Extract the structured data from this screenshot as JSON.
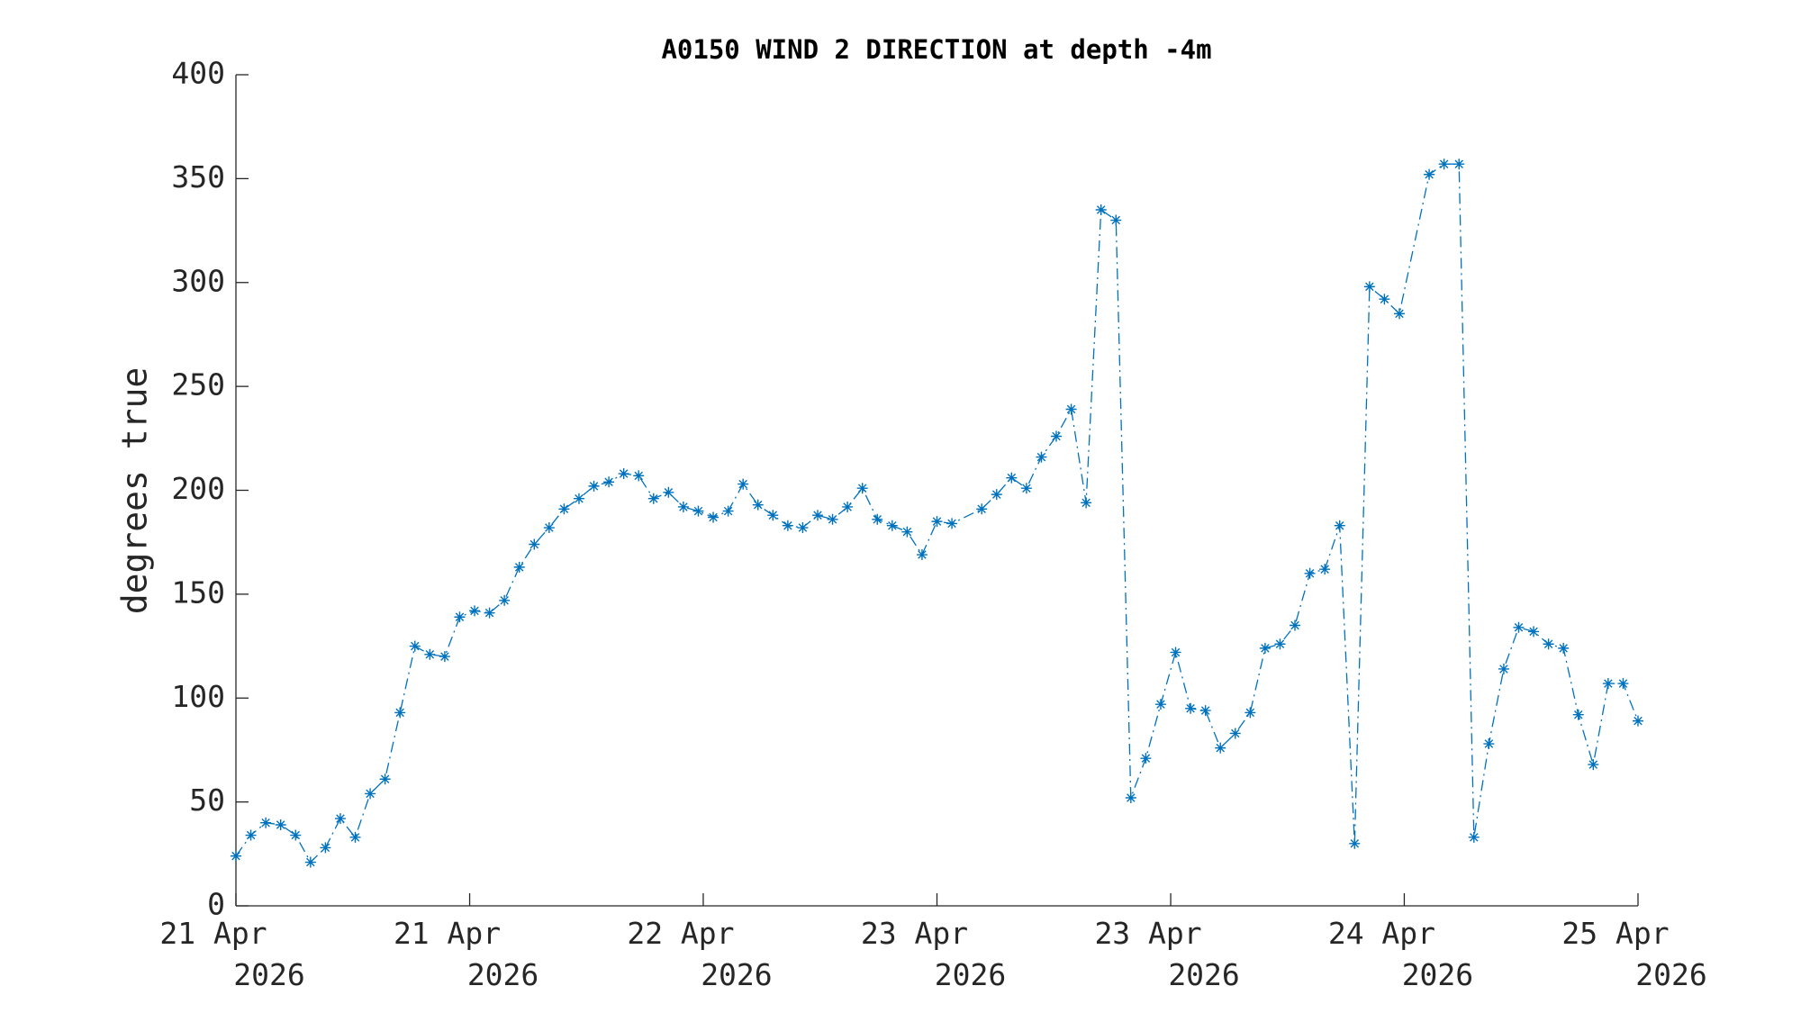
{
  "chart_data": {
    "type": "line",
    "title": "A0150 WIND 2 DIRECTION at depth -4m",
    "ylabel": "degrees true",
    "x": [
      0,
      1,
      2,
      3,
      4,
      5,
      6,
      7,
      8,
      9,
      10,
      11,
      12,
      13,
      14,
      15,
      16,
      17,
      18,
      19,
      20,
      21,
      22,
      23,
      24,
      25,
      26,
      27,
      28,
      29,
      30,
      31,
      32,
      33,
      34,
      35,
      36,
      37,
      38,
      39,
      40,
      41,
      42,
      43,
      44,
      45,
      46,
      47,
      48,
      50,
      51,
      52,
      53,
      54,
      55,
      56,
      57,
      58,
      59,
      60,
      61,
      62,
      63,
      64,
      65,
      66,
      67,
      68,
      69,
      70,
      71,
      72,
      73,
      74,
      75,
      76,
      77,
      78,
      80,
      81,
      82,
      83,
      84,
      85,
      86,
      87,
      88,
      89,
      90,
      91,
      92,
      93,
      94
    ],
    "series": [
      {
        "name": "A0150 WIND 2 DIRECTION",
        "color": "#0072bd",
        "values": [
          24,
          34,
          40,
          39,
          34,
          21,
          28,
          42,
          33,
          54,
          61,
          93,
          125,
          121,
          120,
          139,
          142,
          141,
          147,
          163,
          174,
          182,
          191,
          196,
          202,
          204,
          208,
          207,
          196,
          199,
          192,
          190,
          187,
          190,
          203,
          193,
          188,
          183,
          182,
          188,
          186,
          192,
          201,
          186,
          183,
          180,
          169,
          185,
          184,
          191,
          198,
          206,
          201,
          216,
          226,
          239,
          194,
          335,
          330,
          52,
          71,
          97,
          122,
          95,
          94,
          76,
          83,
          93,
          124,
          126,
          135,
          160,
          162,
          183,
          30,
          298,
          292,
          285,
          352,
          357,
          357,
          33,
          78,
          114,
          134,
          132,
          126,
          124,
          92,
          68,
          107,
          107,
          89
        ]
      }
    ],
    "xlim": [
      0,
      94
    ],
    "xticks": [
      {
        "value": 0,
        "label": "21 Apr 2026"
      },
      {
        "value": 15.67,
        "label": "21 Apr 2026"
      },
      {
        "value": 31.33,
        "label": "22 Apr 2026"
      },
      {
        "value": 47,
        "label": "23 Apr 2026"
      },
      {
        "value": 62.67,
        "label": "23 Apr 2026"
      },
      {
        "value": 78.33,
        "label": "24 Apr 2026"
      },
      {
        "value": 94,
        "label": "25 Apr 2026"
      }
    ],
    "ylim": [
      0,
      400
    ],
    "yticks": [
      0,
      50,
      100,
      150,
      200,
      250,
      300,
      350,
      400
    ],
    "grid": false
  }
}
